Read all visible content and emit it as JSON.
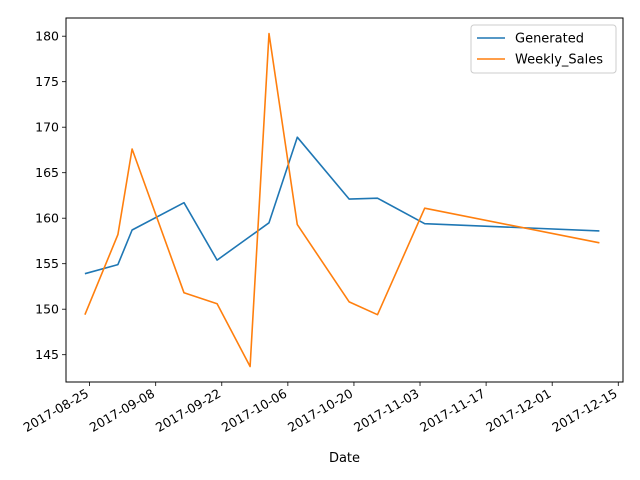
{
  "chart_data": {
    "type": "line",
    "title": "",
    "xlabel": "Date",
    "ylabel": "",
    "x_type": "date",
    "xlim": [
      "2017-08-20",
      "2017-12-16"
    ],
    "ylim": [
      142,
      182
    ],
    "x_ticks": [
      "2017-08-25",
      "2017-09-08",
      "2017-09-22",
      "2017-10-06",
      "2017-10-20",
      "2017-11-03",
      "2017-11-17",
      "2017-12-01",
      "2017-12-15"
    ],
    "y_ticks": [
      145,
      150,
      155,
      160,
      165,
      170,
      175,
      180
    ],
    "grid": false,
    "legend_position": "top-right",
    "series": [
      {
        "name": "Generated",
        "color": "#1f77b4",
        "x": [
          "2017-08-24",
          "2017-08-31",
          "2017-09-03",
          "2017-09-14",
          "2017-09-21",
          "2017-09-28",
          "2017-10-02",
          "2017-10-08",
          "2017-10-19",
          "2017-10-25",
          "2017-11-04",
          "2017-12-11"
        ],
        "y": [
          153.9,
          154.9,
          158.7,
          161.7,
          155.4,
          158.0,
          159.5,
          168.9,
          162.1,
          162.2,
          159.4,
          158.6
        ]
      },
      {
        "name": "Weekly_Sales",
        "color": "#ff7f0e",
        "x": [
          "2017-08-24",
          "2017-08-31",
          "2017-09-03",
          "2017-09-14",
          "2017-09-21",
          "2017-09-28",
          "2017-10-02",
          "2017-10-08",
          "2017-10-19",
          "2017-10-25",
          "2017-11-04",
          "2017-12-11"
        ],
        "y": [
          149.4,
          158.2,
          167.6,
          151.8,
          150.6,
          143.7,
          180.3,
          159.3,
          150.8,
          149.4,
          161.1,
          157.3
        ]
      }
    ]
  }
}
